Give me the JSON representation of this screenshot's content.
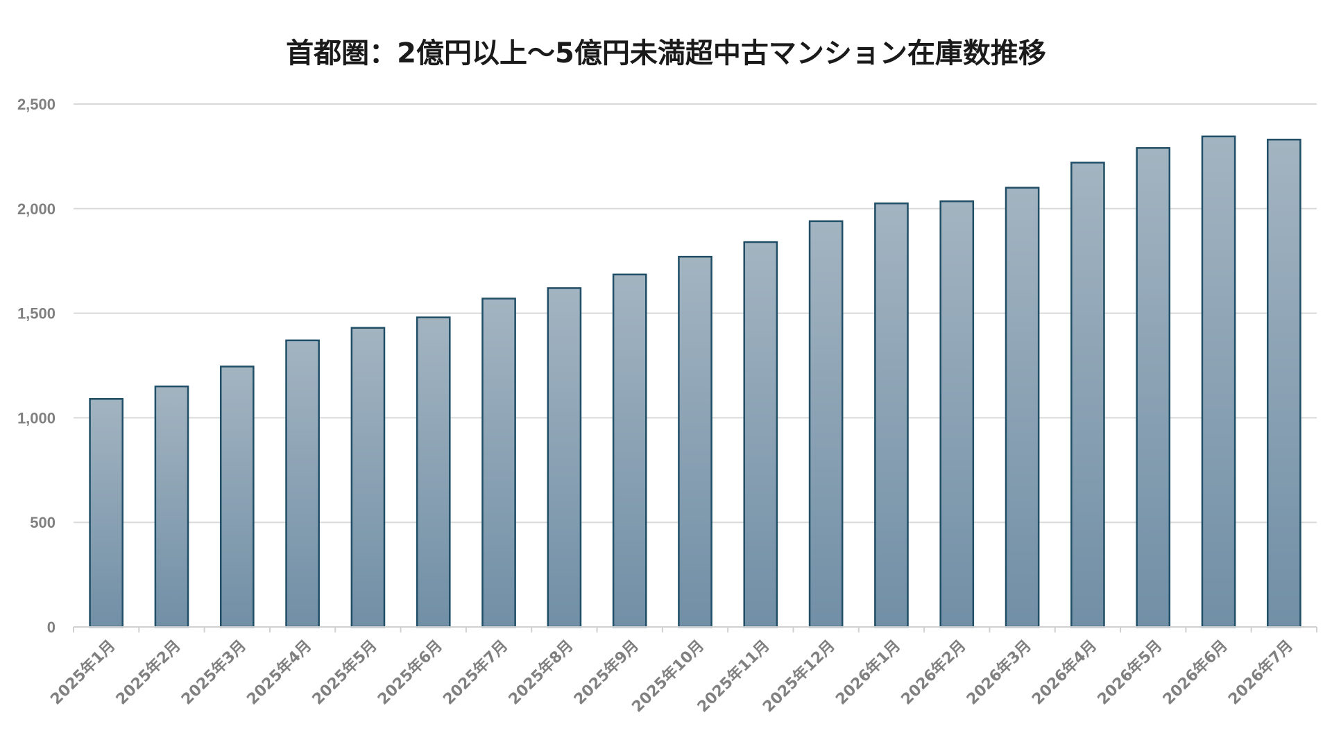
{
  "chart_data": {
    "type": "bar",
    "title": "首都圏：2億円以上～5億円未満超中古マンション在庫数推移",
    "xlabel": "",
    "ylabel": "",
    "categories": [
      "2025年1月",
      "2025年2月",
      "2025年3月",
      "2025年4月",
      "2025年5月",
      "2025年6月",
      "2025年7月",
      "2025年8月",
      "2025年9月",
      "2025年10月",
      "2025年11月",
      "2025年12月",
      "2026年1月",
      "2026年2月",
      "2026年3月",
      "2026年4月",
      "2026年5月",
      "2026年6月",
      "2026年7月"
    ],
    "values": [
      1090,
      1150,
      1245,
      1370,
      1430,
      1480,
      1570,
      1620,
      1685,
      1770,
      1840,
      1940,
      2025,
      2035,
      2100,
      2220,
      2290,
      2345,
      2330
    ],
    "ylim": [
      0,
      2500
    ],
    "yticks": [
      0,
      500,
      1000,
      1500,
      2000,
      2500
    ],
    "ytick_labels": [
      "0",
      "500",
      "1,000",
      "1,500",
      "2,000",
      "2,500"
    ],
    "grid": true,
    "legend": "none",
    "colors": {
      "bar_top": "#a3b4c1",
      "bar_bottom": "#718fa6",
      "bar_edge": "#1f4e66",
      "grid": "#d9d9d9",
      "tick_text": "#808080",
      "title_text": "#1a1a1a"
    }
  }
}
